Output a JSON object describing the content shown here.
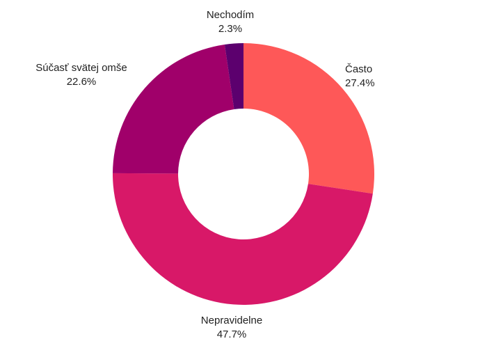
{
  "chart_data": {
    "type": "pie",
    "hole": true,
    "title": "",
    "legend": "none",
    "slices": [
      {
        "label": "Často",
        "value": 27.4,
        "percent_label": "27.4%",
        "color": "#fe5858"
      },
      {
        "label": "Nepravidelne",
        "value": 47.7,
        "percent_label": "47.7%",
        "color": "#d81868"
      },
      {
        "label": "Súčasť svätej omše",
        "value": 22.6,
        "percent_label": "22.6%",
        "color": "#a0006a"
      },
      {
        "label": "Nechodím",
        "value": 2.3,
        "percent_label": "2.3%",
        "color": "#5c006e"
      }
    ]
  }
}
